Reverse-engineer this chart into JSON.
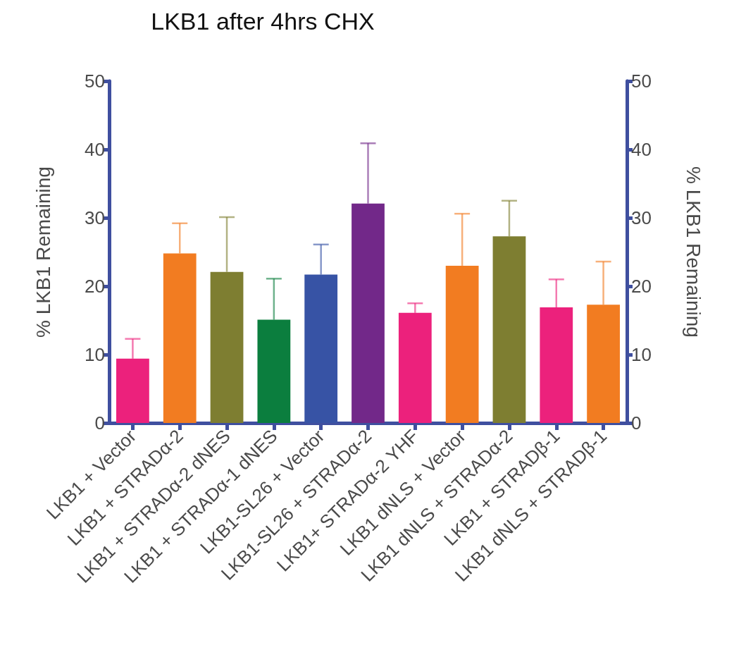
{
  "chart_data": {
    "type": "bar",
    "title": "LKB1 after 4hrs CHX",
    "ylabel": "% LKB1 Remaining",
    "y2label": "% LKB1 Remaining",
    "categories": [
      "LKB1 + Vector",
      "LKB1 + STRADα-2",
      "LKB1 + STRADα-2 dNES",
      "LKB1 + STRADα-1 dNES",
      "LKB1-SL26 + Vector",
      "LKB1-SL26 + STRADα-2",
      "LKB1+ STRADα-2 YHF",
      "LKB1 dNLS + Vector",
      "LKB1 dNLS + STRADα-2",
      "LKB1 + STRADβ-1",
      "LKB1 dNLS + STRADβ-1"
    ],
    "values": [
      9.4,
      24.8,
      22.1,
      15.1,
      21.7,
      32.1,
      16.1,
      23.0,
      27.3,
      16.9,
      17.3
    ],
    "errors": [
      [
        9.4,
        12.3
      ],
      [
        24.8,
        29.2
      ],
      [
        22.1,
        30.1
      ],
      [
        15.1,
        21.1
      ],
      [
        21.7,
        26.1
      ],
      [
        32.1,
        40.9
      ],
      [
        16.1,
        17.5
      ],
      [
        23.0,
        30.6
      ],
      [
        27.3,
        32.5
      ],
      [
        16.9,
        21.0
      ],
      [
        17.3,
        23.6
      ]
    ],
    "colors": [
      "#ec217c",
      "#f27c21",
      "#7e7e31",
      "#0b7e3e",
      "#3753a5",
      "#722889",
      "#ec217c",
      "#f27c21",
      "#7e7e31",
      "#ec217c",
      "#f27c21"
    ],
    "ylim": [
      0,
      50
    ],
    "yticks": [
      0,
      10,
      20,
      30,
      40,
      50
    ],
    "y2lim": [
      0,
      50
    ],
    "y2ticks": [
      0,
      10,
      20,
      30,
      40,
      50
    ]
  }
}
